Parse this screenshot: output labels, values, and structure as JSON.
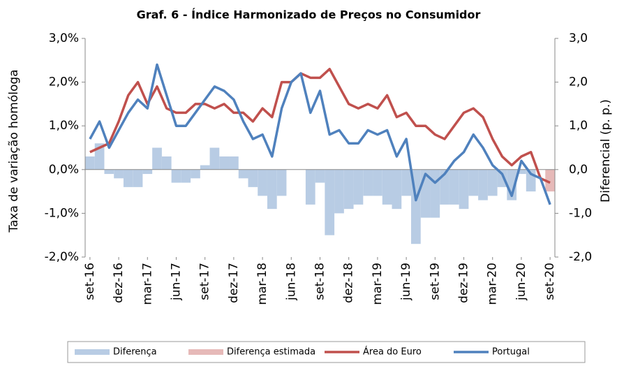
{
  "chart_data": {
    "type": "line",
    "title": "Graf. 6 - Índice Harmonizado de Preços no Consumidor",
    "y_label": "Taxa de variação homóloga",
    "y2_label": "Diferencial (p. p.)",
    "categories": [
      "set-16",
      null,
      null,
      "dez-16",
      null,
      null,
      "mar-17",
      null,
      null,
      "jun-17",
      null,
      null,
      "set-17",
      null,
      null,
      "dez-17",
      null,
      null,
      "mar-18",
      null,
      null,
      "jun-18",
      null,
      null,
      "set-18",
      null,
      null,
      "dez-18",
      null,
      null,
      "mar-19",
      null,
      null,
      "jun-19",
      null,
      null,
      "set-19",
      null,
      null,
      "dez-19",
      null,
      null,
      "mar-20",
      null,
      null,
      "jun-20",
      null,
      null,
      "set-20"
    ],
    "ylim": [
      -2,
      3
    ],
    "yticks": [
      {
        "value": -2,
        "label": "-2,0%"
      },
      {
        "value": -1,
        "label": "-1,0%"
      },
      {
        "value": 0,
        "label": "0,0%"
      },
      {
        "value": 1,
        "label": "1,0%"
      },
      {
        "value": 2,
        "label": "2,0%"
      },
      {
        "value": 3,
        "label": "3,0%"
      }
    ],
    "y2lim": [
      -2,
      3
    ],
    "y2ticks": [
      {
        "value": -2,
        "label": "-2,0"
      },
      {
        "value": -1,
        "label": "-1,0"
      },
      {
        "value": 0,
        "label": "0,0"
      },
      {
        "value": 1,
        "label": "1,0"
      },
      {
        "value": 2,
        "label": "2,0"
      },
      {
        "value": 3,
        "label": "3,0"
      }
    ],
    "legend": "bottom",
    "series": [
      {
        "name": "Diferença",
        "type": "bar",
        "axis": "y2",
        "color": "#b8cce4",
        "values": [
          0.3,
          0.6,
          -0.1,
          -0.2,
          -0.4,
          -0.4,
          -0.1,
          0.5,
          0.3,
          -0.3,
          -0.3,
          -0.2,
          0.1,
          0.5,
          0.3,
          0.3,
          -0.2,
          -0.4,
          -0.6,
          -0.9,
          -0.6,
          0,
          0,
          -0.8,
          -0.3,
          -1.5,
          -1.0,
          -0.9,
          -0.8,
          -0.6,
          -0.6,
          -0.8,
          -0.9,
          -0.6,
          -1.7,
          -1.1,
          -1.1,
          -0.8,
          -0.8,
          -0.9,
          -0.6,
          -0.7,
          -0.6,
          -0.4,
          -0.7,
          -0.1,
          -0.5,
          0,
          null
        ]
      },
      {
        "name": "Diferença estimada",
        "type": "bar",
        "axis": "y2",
        "color": "#e6b9b8",
        "values": [
          null,
          null,
          null,
          null,
          null,
          null,
          null,
          null,
          null,
          null,
          null,
          null,
          null,
          null,
          null,
          null,
          null,
          null,
          null,
          null,
          null,
          null,
          null,
          null,
          null,
          null,
          null,
          null,
          null,
          null,
          null,
          null,
          null,
          null,
          null,
          null,
          null,
          null,
          null,
          null,
          null,
          null,
          null,
          null,
          null,
          null,
          null,
          null,
          -0.5
        ]
      },
      {
        "name": "Área do Euro",
        "type": "line",
        "color": "#c0504d",
        "values": [
          0.4,
          0.5,
          0.6,
          1.1,
          1.7,
          2.0,
          1.5,
          1.9,
          1.4,
          1.3,
          1.3,
          1.5,
          1.5,
          1.4,
          1.5,
          1.3,
          1.3,
          1.1,
          1.4,
          1.2,
          2.0,
          2.0,
          2.2,
          2.1,
          2.1,
          2.3,
          1.9,
          1.5,
          1.4,
          1.5,
          1.4,
          1.7,
          1.2,
          1.3,
          1.0,
          1.0,
          0.8,
          0.7,
          1.0,
          1.3,
          1.4,
          1.2,
          0.7,
          0.3,
          0.1,
          0.3,
          0.4,
          -0.2,
          -0.3
        ]
      },
      {
        "name": "Portugal",
        "type": "line",
        "color": "#4f81bd",
        "values": [
          0.7,
          1.1,
          0.5,
          0.9,
          1.3,
          1.6,
          1.4,
          2.4,
          1.7,
          1.0,
          1.0,
          1.3,
          1.6,
          1.9,
          1.8,
          1.6,
          1.1,
          0.7,
          0.8,
          0.3,
          1.4,
          2.0,
          2.2,
          1.3,
          1.8,
          0.8,
          0.9,
          0.6,
          0.6,
          0.9,
          0.8,
          0.9,
          0.3,
          0.7,
          -0.7,
          -0.1,
          -0.3,
          -0.1,
          0.2,
          0.4,
          0.8,
          0.5,
          0.1,
          -0.1,
          -0.6,
          0.2,
          -0.1,
          -0.2,
          -0.8
        ]
      }
    ]
  }
}
